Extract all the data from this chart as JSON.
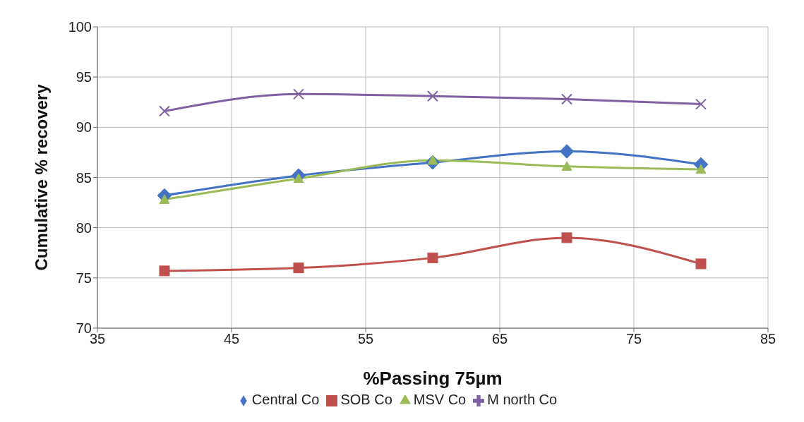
{
  "chart_data": {
    "type": "line",
    "xlabel": "%Passing 75µm",
    "ylabel": "Cumulative % recovery",
    "x": [
      40,
      50,
      60,
      70,
      80
    ],
    "series": [
      {
        "name": "Central Co",
        "color": "#4472c4",
        "marker": "diamond",
        "values": [
          83.2,
          85.2,
          86.5,
          87.6,
          86.3
        ]
      },
      {
        "name": "SOB Co",
        "color": "#c0504d",
        "marker": "square",
        "values": [
          75.7,
          76.0,
          77.0,
          79.0,
          76.4
        ]
      },
      {
        "name": "MSV Co",
        "color": "#9bbb59",
        "marker": "triangle",
        "values": [
          82.8,
          84.9,
          86.7,
          86.1,
          85.8
        ]
      },
      {
        "name": "M north Co",
        "color": "#7f60a0",
        "marker": "cross",
        "values": [
          91.6,
          93.3,
          93.1,
          92.8,
          92.3
        ]
      }
    ],
    "xlim": [
      35,
      85
    ],
    "xticks": [
      35,
      45,
      55,
      65,
      75,
      85
    ],
    "ylim": [
      70,
      100
    ],
    "yticks": [
      70,
      75,
      80,
      85,
      90,
      95,
      100
    ],
    "grid": true,
    "legend": "bottom",
    "line_style": "solid"
  }
}
